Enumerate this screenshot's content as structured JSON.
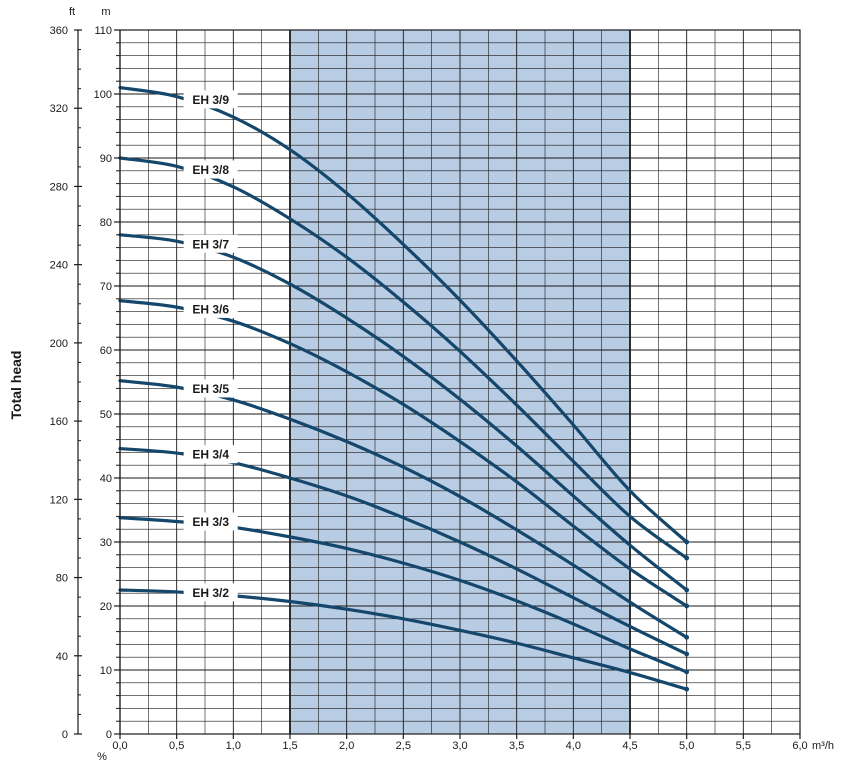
{
  "chart_data": {
    "type": "line",
    "title": "",
    "ylabel": "Total head",
    "x_unit": "m³/h",
    "y_unit_left_outer": "ft",
    "y_unit_left_inner": "m",
    "x_extra_unit": "%",
    "xlim": [
      0,
      6
    ],
    "ylim": [
      0,
      110
    ],
    "ylim_ft": [
      0,
      360
    ],
    "x_ticks": [
      "0,0",
      "0,5",
      "1,0",
      "1,5",
      "2,0",
      "2,5",
      "3,0",
      "3,5",
      "4,0",
      "4,5",
      "5,0",
      "5,5",
      "6,0"
    ],
    "y_ticks_m": [
      "0",
      "10",
      "20",
      "30",
      "40",
      "50",
      "60",
      "70",
      "80",
      "90",
      "100",
      "110"
    ],
    "y_ticks_ft": [
      "0",
      "40",
      "80",
      "120",
      "160",
      "200",
      "240",
      "280",
      "320",
      "360"
    ],
    "shaded_region_x": [
      1.5,
      4.5
    ],
    "colors": {
      "curve": "#14476b",
      "shade": "#b8cce4",
      "grid": "#1a1a1a"
    },
    "series": [
      {
        "name": "EH 3/2",
        "x": [
          0,
          0.5,
          1.0,
          1.5,
          2.0,
          2.5,
          3.0,
          3.5,
          4.0,
          4.5,
          5.0
        ],
        "y": [
          22.5,
          22.2,
          21.6,
          20.7,
          19.5,
          18.0,
          16.2,
          14.2,
          11.9,
          9.6,
          7.0
        ]
      },
      {
        "name": "EH 3/3",
        "x": [
          0,
          0.5,
          1.0,
          1.5,
          2.0,
          2.5,
          3.0,
          3.5,
          4.0,
          4.5,
          5.0
        ],
        "y": [
          33.8,
          33.2,
          32.3,
          30.8,
          29.0,
          26.7,
          24.0,
          20.8,
          17.2,
          13.3,
          9.7
        ]
      },
      {
        "name": "EH 3/4",
        "x": [
          0,
          0.5,
          1.0,
          1.5,
          2.0,
          2.5,
          3.0,
          3.5,
          4.0,
          4.5,
          5.0
        ],
        "y": [
          44.6,
          43.9,
          42.4,
          40.0,
          37.2,
          33.8,
          30.0,
          25.8,
          21.3,
          16.8,
          12.5
        ]
      },
      {
        "name": "EH 3/5",
        "x": [
          0,
          0.5,
          1.0,
          1.5,
          2.0,
          2.5,
          3.0,
          3.5,
          4.0,
          4.5,
          5.0
        ],
        "y": [
          55.2,
          54.2,
          52.2,
          49.2,
          45.7,
          41.7,
          37.1,
          31.9,
          26.4,
          20.6,
          15.1
        ]
      },
      {
        "name": "EH 3/6",
        "x": [
          0,
          0.5,
          1.0,
          1.5,
          2.0,
          2.5,
          3.0,
          3.5,
          4.0,
          4.5,
          5.0
        ],
        "y": [
          67.7,
          66.7,
          64.5,
          61.0,
          56.6,
          51.5,
          45.7,
          39.4,
          32.5,
          25.8,
          20.0
        ]
      },
      {
        "name": "EH 3/7",
        "x": [
          0,
          0.5,
          1.0,
          1.5,
          2.0,
          2.5,
          3.0,
          3.5,
          4.0,
          4.5,
          5.0
        ],
        "y": [
          78.0,
          77.0,
          74.5,
          70.3,
          65.0,
          59.0,
          52.3,
          45.0,
          37.2,
          29.5,
          22.5
        ]
      },
      {
        "name": "EH 3/8",
        "x": [
          0,
          0.5,
          1.0,
          1.5,
          2.0,
          2.5,
          3.0,
          3.5,
          4.0,
          4.5,
          5.0
        ],
        "y": [
          90.0,
          88.7,
          85.5,
          80.5,
          74.5,
          67.5,
          59.8,
          51.4,
          42.6,
          34.0,
          27.5
        ]
      },
      {
        "name": "EH 3/9",
        "x": [
          0,
          0.5,
          1.0,
          1.5,
          2.0,
          2.5,
          3.0,
          3.5,
          4.0,
          4.5,
          5.0
        ],
        "y": [
          101.0,
          99.6,
          96.4,
          91.3,
          84.5,
          76.5,
          67.8,
          58.3,
          48.3,
          38.0,
          30.0
        ]
      }
    ]
  }
}
